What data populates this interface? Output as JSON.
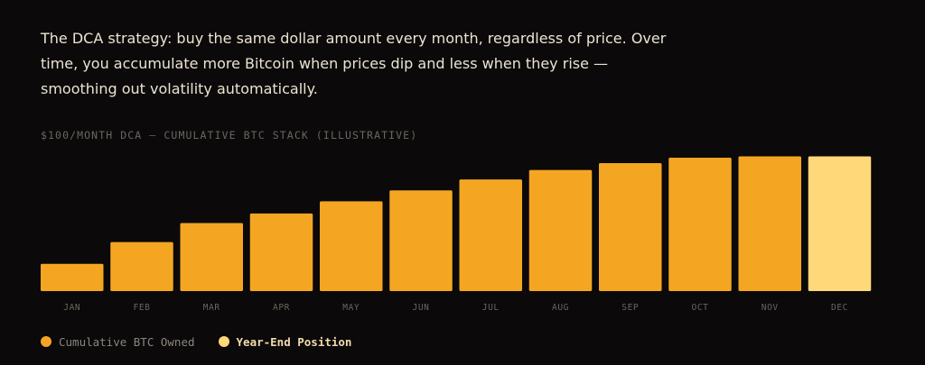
{
  "description": "The DCA strategy: buy the same dollar amount every month, regardless of price. Over time, you accumulate more Bitcoin when prices dip and less when they rise — smoothing out volatility automatically.",
  "colors": {
    "background": "#0b0909",
    "bar": "#f4a623",
    "highlight_bar": "#ffd879",
    "muted_text": "#6c6661"
  },
  "chart_data": {
    "type": "bar",
    "title": "$100/MONTH DCA — CUMULATIVE BTC STACK (ILLUSTRATIVE)",
    "xlabel": "",
    "ylabel": "",
    "categories": [
      "JAN",
      "FEB",
      "MAR",
      "APR",
      "MAY",
      "JUN",
      "JUL",
      "AUG",
      "SEP",
      "OCT",
      "NOV",
      "DEC"
    ],
    "values": [
      20,
      36,
      50,
      57,
      66,
      74,
      82,
      89,
      94,
      98,
      99,
      99
    ],
    "highlight": [
      "DEC"
    ],
    "ylim": [
      0,
      100
    ],
    "grid": false,
    "y_axis_visible": false,
    "legend_position": "bottom-left",
    "legend": [
      {
        "label": "Cumulative BTC Owned",
        "color": "#f4a623"
      },
      {
        "label": "Year-End Position",
        "color": "#ffd879"
      }
    ]
  }
}
